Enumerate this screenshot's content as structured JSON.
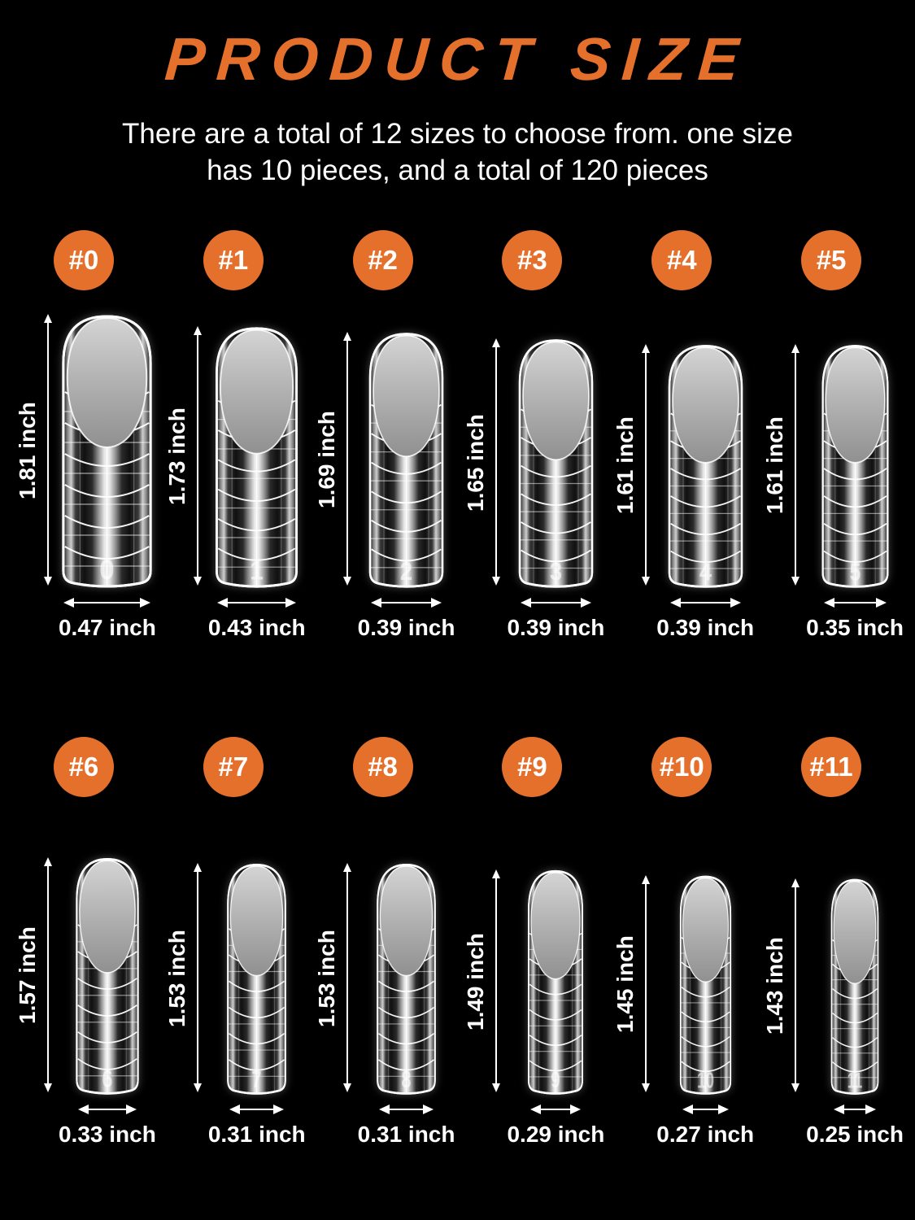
{
  "page": {
    "background_color": "#000000",
    "accent_color": "#E5702C",
    "text_color": "#FFFFFF"
  },
  "header": {
    "title": "PRODUCT SIZE",
    "subtitle_line1": "There are a total of 12 sizes to choose from. one size",
    "subtitle_line2": "has 10 pieces, and a total of 120 pieces"
  },
  "unit": "inch",
  "sizes": [
    {
      "badge": "#0",
      "num": "0",
      "length_in": 1.81,
      "width_in": 0.47,
      "length_label": "1.81 inch",
      "width_label": "0.47 inch",
      "row": 1
    },
    {
      "badge": "#1",
      "num": "1",
      "length_in": 1.73,
      "width_in": 0.43,
      "length_label": "1.73 inch",
      "width_label": "0.43 inch",
      "row": 1
    },
    {
      "badge": "#2",
      "num": "2",
      "length_in": 1.69,
      "width_in": 0.39,
      "length_label": "1.69 inch",
      "width_label": "0.39 inch",
      "row": 1
    },
    {
      "badge": "#3",
      "num": "3",
      "length_in": 1.65,
      "width_in": 0.39,
      "length_label": "1.65 inch",
      "width_label": "0.39 inch",
      "row": 1
    },
    {
      "badge": "#4",
      "num": "4",
      "length_in": 1.61,
      "width_in": 0.39,
      "length_label": "1.61 inch",
      "width_label": "0.39 inch",
      "row": 1
    },
    {
      "badge": "#5",
      "num": "5",
      "length_in": 1.61,
      "width_in": 0.35,
      "length_label": "1.61 inch",
      "width_label": "0.35 inch",
      "row": 1
    },
    {
      "badge": "#6",
      "num": "6",
      "length_in": 1.57,
      "width_in": 0.33,
      "length_label": "1.57 inch",
      "width_label": "0.33 inch",
      "row": 2
    },
    {
      "badge": "#7",
      "num": "7",
      "length_in": 1.53,
      "width_in": 0.31,
      "length_label": "1.53 inch",
      "width_label": "0.31 inch",
      "row": 2
    },
    {
      "badge": "#8",
      "num": "8",
      "length_in": 1.53,
      "width_in": 0.31,
      "length_label": "1.53 inch",
      "width_label": "0.31 inch",
      "row": 2
    },
    {
      "badge": "#9",
      "num": "9",
      "length_in": 1.49,
      "width_in": 0.29,
      "length_label": "1.49 inch",
      "width_label": "0.29 inch",
      "row": 2
    },
    {
      "badge": "#10",
      "num": "10",
      "length_in": 1.45,
      "width_in": 0.27,
      "length_label": "1.45 inch",
      "width_label": "0.27 inch",
      "row": 2
    },
    {
      "badge": "#11",
      "num": "11",
      "length_in": 1.43,
      "width_in": 0.25,
      "length_label": "1.43 inch",
      "width_label": "0.25 inch",
      "row": 2
    }
  ],
  "chart_data": {
    "type": "table",
    "title": "PRODUCT SIZE",
    "columns": [
      "size",
      "length_inch",
      "width_inch"
    ],
    "rows": [
      [
        "#0",
        1.81,
        0.47
      ],
      [
        "#1",
        1.73,
        0.43
      ],
      [
        "#2",
        1.69,
        0.39
      ],
      [
        "#3",
        1.65,
        0.39
      ],
      [
        "#4",
        1.61,
        0.39
      ],
      [
        "#5",
        1.61,
        0.35
      ],
      [
        "#6",
        1.57,
        0.33
      ],
      [
        "#7",
        1.53,
        0.31
      ],
      [
        "#8",
        1.53,
        0.31
      ],
      [
        "#9",
        1.49,
        0.29
      ],
      [
        "#10",
        1.45,
        0.27
      ],
      [
        "#11",
        1.43,
        0.25
      ]
    ],
    "notes": "12 sizes total, 10 pieces per size, 120 pieces total"
  }
}
